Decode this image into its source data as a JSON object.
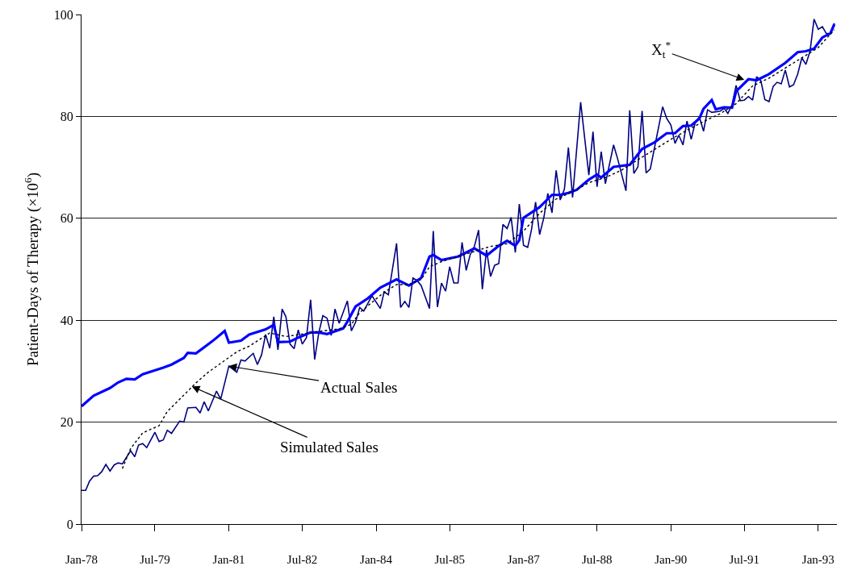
{
  "chart_data": {
    "type": "line",
    "ylabel": "Patient-Days of Therapy (×10$^{6}$)",
    "xlim": [
      "1978-01-01",
      "1993-05-20"
    ],
    "ylim": [
      0,
      100
    ],
    "yticks": [
      0,
      20,
      40,
      60,
      80,
      100
    ],
    "xticks": [
      {
        "value": "1978-01",
        "label": "Jan-78"
      },
      {
        "value": "1979-07",
        "label": "Jul-79"
      },
      {
        "value": "1981-01",
        "label": "Jan-81"
      },
      {
        "value": "1982-07",
        "label": "Jul-82"
      },
      {
        "value": "1984-01",
        "label": "Jan-84"
      },
      {
        "value": "1985-07",
        "label": "Jul-85"
      },
      {
        "value": "1987-01",
        "label": "Jan-87"
      },
      {
        "value": "1988-07",
        "label": "Jul-88"
      },
      {
        "value": "1990-01",
        "label": "Jan-90"
      },
      {
        "value": "1991-07",
        "label": "Jul-91"
      },
      {
        "value": "1993-01",
        "label": "Jan-93"
      }
    ],
    "grid": "y",
    "marker": "none",
    "series": [
      {
        "color": "#000080",
        "line_style": "solid",
        "x": [
          "1978-01",
          "1978-02",
          "1978-03",
          "1978-04",
          "1978-05",
          "1978-06",
          "1978-07",
          "1978-08",
          "1978-09",
          "1978-10",
          "1978-11",
          "1979-01",
          "1979-02",
          "1979-03",
          "1979-04",
          "1979-05",
          "1979-07",
          "1979-08",
          "1979-09",
          "1979-10",
          "1979-11",
          "1980-01",
          "1980-02",
          "1980-03",
          "1980-05",
          "1980-06",
          "1980-07",
          "1980-08",
          "1980-10",
          "1980-11",
          "1981-01",
          "1981-03",
          "1981-04",
          "1981-05",
          "1981-07",
          "1981-08",
          "1981-09",
          "1981-10",
          "1981-11",
          "1981-12",
          "1982-01",
          "1982-02",
          "1982-03",
          "1982-04",
          "1982-05",
          "1982-06",
          "1982-07",
          "1982-08",
          "1982-09",
          "1982-10",
          "1982-11",
          "1982-12",
          "1983-01",
          "1983-02",
          "1983-03",
          "1983-04",
          "1983-06",
          "1983-07",
          "1983-08",
          "1983-09",
          "1983-10",
          "1983-12",
          "1984-02",
          "1984-03",
          "1984-04",
          "1984-06",
          "1984-07",
          "1984-08",
          "1984-09",
          "1984-10",
          "1984-11",
          "1984-12",
          "1985-02",
          "1985-03",
          "1985-04",
          "1985-05",
          "1985-06",
          "1985-07",
          "1985-08",
          "1985-09",
          "1985-10",
          "1985-11",
          "1985-12",
          "1986-01",
          "1986-02",
          "1986-03",
          "1986-04",
          "1986-05",
          "1986-06",
          "1986-07",
          "1986-08",
          "1986-09",
          "1986-10",
          "1986-11",
          "1986-12",
          "1987-01",
          "1987-02",
          "1987-03",
          "1987-04",
          "1987-05",
          "1987-06",
          "1987-07",
          "1987-08",
          "1987-09",
          "1987-10",
          "1987-11",
          "1987-12",
          "1988-01",
          "1988-03",
          "1988-05",
          "1988-06",
          "1988-07",
          "1988-08",
          "1988-09",
          "1988-11",
          "1988-12",
          "1989-02",
          "1989-03",
          "1989-04",
          "1989-05",
          "1989-06",
          "1989-07",
          "1989-08",
          "1989-11",
          "1989-12",
          "1990-01",
          "1990-02",
          "1990-03",
          "1990-04",
          "1990-05",
          "1990-06",
          "1990-07",
          "1990-08",
          "1990-09",
          "1990-10",
          "1990-11",
          "1991-01",
          "1991-02",
          "1991-03",
          "1991-04",
          "1991-05",
          "1991-06",
          "1991-07",
          "1991-08",
          "1991-09",
          "1991-10",
          "1991-11",
          "1991-12",
          "1992-01",
          "1992-02",
          "1992-03",
          "1992-04",
          "1992-05",
          "1992-06",
          "1992-07",
          "1992-08",
          "1992-09",
          "1992-10",
          "1992-11",
          "1992-12",
          "1993-01",
          "1993-02",
          "1993-03",
          "1993-04",
          "1993-05"
        ],
        "values": [
          6.6,
          6.6,
          8.4,
          9.4,
          9.5,
          10.3,
          11.7,
          10.4,
          11.6,
          12,
          11.8,
          14.4,
          13.2,
          15.5,
          15.8,
          15,
          18,
          16.2,
          16.5,
          18.4,
          17.8,
          20.2,
          20,
          22.8,
          22.9,
          21.8,
          24,
          22.2,
          26.1,
          24.5,
          31,
          29.8,
          32.2,
          32,
          33.5,
          31.3,
          33.2,
          37.2,
          34.5,
          40.7,
          34.2,
          42.2,
          40.7,
          35.3,
          34.4,
          38.1,
          35.3,
          36.6,
          44,
          32.3,
          37.6,
          40.9,
          40.4,
          37,
          42.2,
          39.4,
          43.8,
          37.9,
          39.6,
          42.5,
          41.8,
          44.8,
          42.3,
          45.6,
          45,
          55.1,
          42.5,
          43.7,
          42.5,
          48.3,
          47.8,
          46.8,
          42.3,
          57.5,
          42.6,
          47.3,
          45.7,
          50.5,
          47.3,
          47.3,
          55.3,
          49.8,
          52.9,
          54.5,
          57.7,
          46.1,
          53.8,
          48.6,
          50.8,
          51.1,
          58.8,
          58,
          60.2,
          53.3,
          62.8,
          54.7,
          54.3,
          57.7,
          63.2,
          56.8,
          60.1,
          64.9,
          61.1,
          69.4,
          63.6,
          65.7,
          73.9,
          64.1,
          82.8,
          68.5,
          77,
          66.2,
          73.1,
          66.8,
          74.4,
          71.7,
          65.4,
          81.2,
          68.8,
          70.1,
          81.1,
          68.9,
          69.7,
          81.9,
          79.6,
          78.3,
          74.7,
          76.3,
          74.4,
          79.1,
          75.5,
          78.8,
          79.9,
          77.1,
          81.3,
          80.8,
          81,
          81.6,
          80.6,
          82.3,
          86.1,
          83.1,
          83.2,
          83.9,
          83.2,
          87.8,
          87,
          83.3,
          82.9,
          85.9,
          86.7,
          86.4,
          89.1,
          85.8,
          86.2,
          88.3,
          91.5,
          90.2,
          92.8,
          99.1,
          97.1,
          97.6,
          96.3,
          96.2,
          98.3
        ]
      },
      {
        "color": "#0000ff",
        "line_style": "solid",
        "x": [
          "1978-01",
          "1978-04",
          "1978-08",
          "1978-10",
          "1978-12",
          "1979-02",
          "1979-04",
          "1979-09",
          "1979-11",
          "1980-02",
          "1980-03",
          "1980-05",
          "1980-09",
          "1980-12",
          "1981-01",
          "1981-04",
          "1981-06",
          "1981-10",
          "1981-12",
          "1982-01",
          "1982-04",
          "1982-06",
          "1982-09",
          "1982-11",
          "1983-01",
          "1983-05",
          "1983-06",
          "1983-08",
          "1983-11",
          "1984-02",
          "1984-06",
          "1984-09",
          "1984-12",
          "1985-02",
          "1985-03",
          "1985-05",
          "1985-09",
          "1986-01",
          "1986-04",
          "1986-07",
          "1986-09",
          "1986-11",
          "1986-12",
          "1987-01",
          "1987-05",
          "1987-08",
          "1987-10",
          "1987-12",
          "1988-02",
          "1988-05",
          "1988-07",
          "1988-08",
          "1988-11",
          "1989-03",
          "1989-06",
          "1989-09",
          "1989-12",
          "1990-02",
          "1990-04",
          "1990-06",
          "1990-08",
          "1990-09",
          "1990-11",
          "1990-12",
          "1991-02",
          "1991-04",
          "1991-05",
          "1991-08",
          "1991-10",
          "1992-01",
          "1992-05",
          "1992-08",
          "1992-10",
          "1992-12",
          "1993-02",
          "1993-04",
          "1993-05"
        ],
        "values": [
          23.1,
          25.2,
          26.7,
          27.8,
          28.5,
          28.4,
          29.4,
          30.7,
          31.3,
          32.6,
          33.6,
          33.5,
          35.9,
          37.9,
          35.6,
          36,
          37.2,
          38.2,
          39.1,
          35.7,
          35.8,
          36.6,
          37.6,
          37.6,
          37.3,
          38.4,
          39.7,
          42.7,
          44.3,
          46.4,
          48,
          46.8,
          48.3,
          52.5,
          52.8,
          51.8,
          52.5,
          54.1,
          52.7,
          54.6,
          55.6,
          54.6,
          55.7,
          60.1,
          62.2,
          64.6,
          64.6,
          65,
          65.6,
          67.6,
          68.6,
          68,
          70.1,
          70.5,
          73.6,
          74.9,
          76.7,
          76.7,
          78.1,
          78.2,
          79.6,
          81.5,
          83.2,
          81.4,
          81.8,
          81.7,
          84.9,
          87.3,
          87.1,
          88.3,
          90.5,
          92.6,
          92.8,
          93.3,
          95.5,
          96.3,
          98.1
        ]
      },
      {
        "color": "#000000",
        "line_style": "dotted",
        "x": [
          "1978-11",
          "1979-01",
          "1979-04",
          "1979-08",
          "1979-10",
          "1980-02",
          "1980-05",
          "1980-08",
          "1980-12",
          "1981-03",
          "1981-06",
          "1981-11",
          "1982-03",
          "1982-11",
          "1983-04",
          "1983-07",
          "1983-09",
          "1983-12",
          "1984-03",
          "1984-06",
          "1984-09",
          "1984-12",
          "1985-02",
          "1985-05",
          "1985-09",
          "1986-01",
          "1986-05",
          "1986-09",
          "1987-01",
          "1987-05",
          "1987-09",
          "1988-01",
          "1988-05",
          "1988-09",
          "1989-01",
          "1989-05",
          "1989-09",
          "1990-01",
          "1990-05",
          "1990-09",
          "1991-01",
          "1991-05",
          "1991-09",
          "1992-01",
          "1992-05",
          "1992-09",
          "1993-01",
          "1993-05"
        ],
        "values": [
          10.9,
          14.8,
          17.9,
          19.3,
          22.1,
          25.3,
          27.7,
          29.8,
          32.1,
          33.8,
          34.9,
          37.5,
          36.8,
          37.8,
          38.3,
          39.2,
          41.5,
          43.5,
          45.5,
          47,
          47,
          48,
          50.5,
          51.5,
          52.5,
          53.5,
          54.5,
          55,
          57.5,
          61,
          63.8,
          65.2,
          67,
          68,
          69.5,
          71.5,
          73.5,
          75.5,
          77.3,
          79,
          80.5,
          82.5,
          86,
          87.5,
          89.5,
          91.5,
          93.5,
          97
        ]
      }
    ],
    "annotations": [
      {
        "text": "Actual Sales",
        "x": "1981-01",
        "y": 31
      },
      {
        "text": "Simulated Sales",
        "x": "1980-04",
        "y": 27
      },
      {
        "text": "X$_{t}$$^{*}$",
        "x": "1991-07",
        "y": 87.2
      }
    ]
  }
}
